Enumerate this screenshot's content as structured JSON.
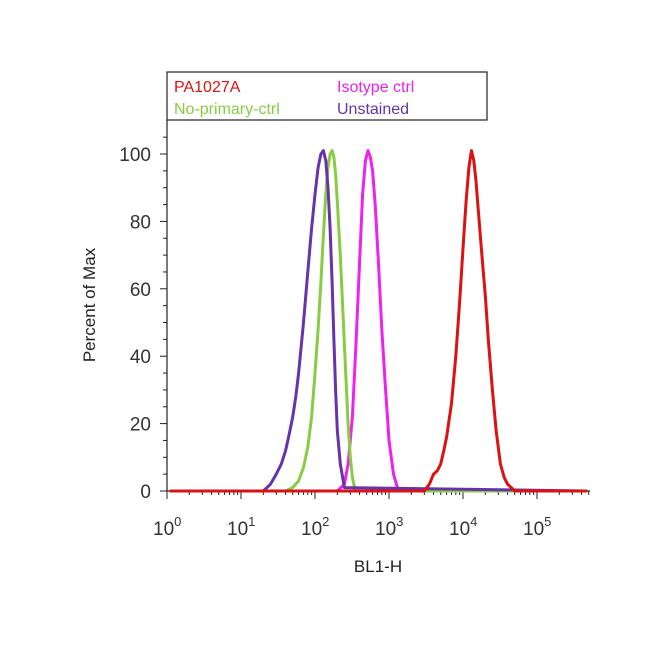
{
  "chart_data": {
    "type": "line",
    "xlabel": "BL1-H",
    "ylabel": "Percent of Max",
    "xscale": "log",
    "xlim": [
      1,
      600000
    ],
    "ylim": [
      0,
      110
    ],
    "x_ticks": [
      {
        "base": "10",
        "exp": "0"
      },
      {
        "base": "10",
        "exp": "1"
      },
      {
        "base": "10",
        "exp": "2"
      },
      {
        "base": "10",
        "exp": "3"
      },
      {
        "base": "10",
        "exp": "4"
      },
      {
        "base": "10",
        "exp": "5"
      }
    ],
    "y_ticks": [
      "0",
      "20",
      "40",
      "60",
      "80",
      "100"
    ],
    "legend_position": "top",
    "series": [
      {
        "name": "Isotype ctrl",
        "color": "#ee22ee",
        "x": [
          1,
          200,
          250,
          280,
          320,
          360,
          400,
          440,
          480,
          520,
          560,
          600,
          650,
          720,
          800,
          900,
          1000,
          1150,
          1300,
          1500,
          600000
        ],
        "y": [
          0,
          0,
          2,
          8,
          22,
          45,
          68,
          88,
          98,
          101,
          99,
          95,
          85,
          68,
          48,
          30,
          15,
          5,
          1,
          0,
          0
        ]
      },
      {
        "name": "No-primary-ctrl",
        "color": "#88cc44",
        "x": [
          1,
          40,
          50,
          60,
          70,
          80,
          90,
          100,
          110,
          120,
          130,
          140,
          150,
          160,
          170,
          180,
          190,
          200,
          220,
          240,
          260,
          280,
          300,
          320,
          350,
          600000
        ],
        "y": [
          0,
          0,
          1,
          3,
          7,
          13,
          22,
          35,
          48,
          62,
          76,
          88,
          96,
          100,
          101,
          99,
          94,
          86,
          70,
          52,
          35,
          20,
          10,
          4,
          0,
          0
        ]
      },
      {
        "name": "Unstained",
        "color": "#6633aa",
        "x": [
          1,
          20,
          25,
          30,
          35,
          40,
          45,
          50,
          55,
          60,
          70,
          80,
          90,
          100,
          110,
          120,
          130,
          140,
          150,
          160,
          170,
          180,
          190,
          200,
          220,
          250,
          600000
        ],
        "y": [
          0,
          0,
          2,
          5,
          8,
          12,
          17,
          22,
          28,
          35,
          50,
          65,
          78,
          88,
          96,
          100,
          101,
          98,
          90,
          78,
          62,
          45,
          30,
          18,
          8,
          1,
          0
        ]
      },
      {
        "name": "PA1027A",
        "color": "#dd1111",
        "x": [
          1,
          3000,
          3500,
          4000,
          4500,
          5000,
          5500,
          6000,
          7000,
          8000,
          9000,
          10000,
          11000,
          12000,
          13000,
          14000,
          15000,
          16000,
          18000,
          20000,
          22000,
          25000,
          28000,
          32000,
          36000,
          40000,
          45000,
          50000,
          600000
        ],
        "y": [
          0,
          0,
          2,
          5,
          6,
          8,
          12,
          16,
          26,
          40,
          56,
          72,
          86,
          96,
          101,
          98,
          92,
          84,
          70,
          58,
          45,
          30,
          18,
          8,
          4,
          2,
          1,
          0,
          0
        ]
      }
    ],
    "legend": {
      "col1": [
        "PA1027A",
        "No-primary-ctrl"
      ],
      "col2": [
        "Isotype ctrl",
        "Unstained"
      ],
      "col1_colors": [
        "#dd1111",
        "#88cc44"
      ],
      "col2_colors": [
        "#ee22ee",
        "#6633aa"
      ]
    }
  }
}
